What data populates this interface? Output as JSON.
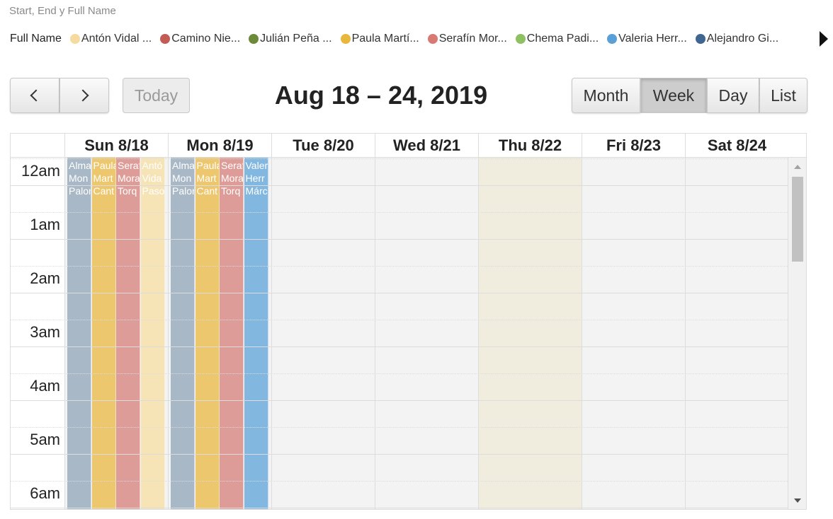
{
  "subtitle": "Start, End y Full Name",
  "legend": {
    "title": "Full Name",
    "items": [
      {
        "label": "Antón Vidal ...",
        "color": "#f5dba0"
      },
      {
        "label": "Camino Nie...",
        "color": "#c45c56"
      },
      {
        "label": "Julián Peña ...",
        "color": "#6b8a3a"
      },
      {
        "label": "Paula Martí...",
        "color": "#e8b83c"
      },
      {
        "label": "Serafín Mor...",
        "color": "#d87a74"
      },
      {
        "label": "Chema Padi...",
        "color": "#8fc063"
      },
      {
        "label": "Valeria Herr...",
        "color": "#5aa0d8"
      },
      {
        "label": "Alejandro Gi...",
        "color": "#3f6690"
      }
    ]
  },
  "toolbar": {
    "prev_icon": "chevron-left-icon",
    "next_icon": "chevron-right-icon",
    "today_label": "Today",
    "title": "Aug 18 – 24, 2019",
    "views": {
      "month": "Month",
      "week": "Week",
      "day": "Day",
      "list": "List"
    },
    "active_view": "Week"
  },
  "days": [
    "Sun 8/18",
    "Mon 8/19",
    "Tue 8/20",
    "Wed 8/21",
    "Thu 8/22",
    "Fri 8/23",
    "Sat 8/24"
  ],
  "today_index": 4,
  "times": [
    "12am",
    "1am",
    "2am",
    "3am",
    "4am",
    "5am",
    "6am"
  ],
  "events": [
    {
      "day": 0,
      "lines": [
        "Alma",
        "Mon",
        "Palor"
      ],
      "color": "#a8b8c6"
    },
    {
      "day": 0,
      "lines": [
        "Paula",
        "Mart",
        "Cant"
      ],
      "color": "#edc76d"
    },
    {
      "day": 0,
      "lines": [
        "Seraf",
        "Mora",
        "Torq"
      ],
      "color": "#de9c98"
    },
    {
      "day": 0,
      "lines": [
        "Antó",
        "Vida",
        "Paso"
      ],
      "color": "#f6e3b6"
    },
    {
      "day": 1,
      "lines": [
        "Alma",
        "Mon",
        "Palor"
      ],
      "color": "#a8b8c6"
    },
    {
      "day": 1,
      "lines": [
        "Paula",
        "Mart",
        "Cant"
      ],
      "color": "#edc76d"
    },
    {
      "day": 1,
      "lines": [
        "Seraf",
        "Mora",
        "Torq"
      ],
      "color": "#de9c98"
    },
    {
      "day": 1,
      "lines": [
        "Valer",
        "Herr",
        "Márc"
      ],
      "color": "#82b7e0"
    }
  ]
}
